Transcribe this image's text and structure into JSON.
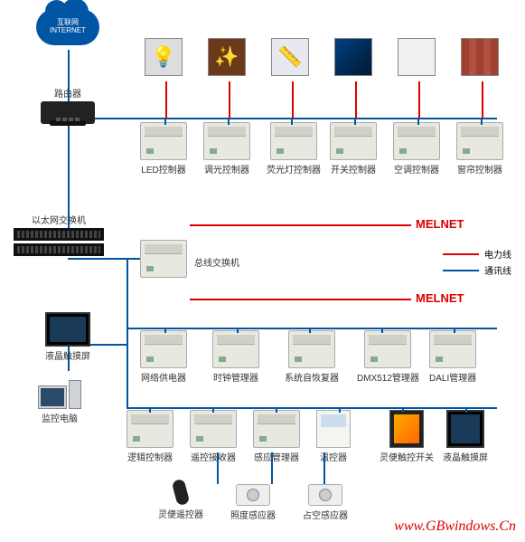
{
  "colors": {
    "bus": "#0055a5",
    "power": "#d00",
    "device": "#e8e8e0",
    "border": "#aaa"
  },
  "cloud": {
    "line1": "互联网",
    "line2": "INTERNET"
  },
  "router": {
    "label": "路由器"
  },
  "eth_switch": {
    "label": "以太网交换机"
  },
  "lcd": {
    "label": "液晶触摸屏"
  },
  "pc": {
    "label": "监控电脑"
  },
  "bus_switch": {
    "label": "总线交换机"
  },
  "melnet": "MELNET",
  "legend": {
    "power": "电力线",
    "comm": "通讯线"
  },
  "watermark": "www.GBwindows.Cn",
  "row1_icons": [
    {
      "glyph": "💡",
      "bg": "#ddd"
    },
    {
      "glyph": "✨",
      "bg": "#6a3a1a"
    },
    {
      "glyph": "📏",
      "bg": "#e8e8f0"
    },
    {
      "glyph": "",
      "cls": "tv-icon"
    },
    {
      "glyph": "",
      "cls": "ac-icon"
    },
    {
      "glyph": "",
      "cls": "curtain-icon"
    }
  ],
  "row1": [
    {
      "label": "LED控制器"
    },
    {
      "label": "调光控制器"
    },
    {
      "label": "荧光灯控制器"
    },
    {
      "label": "开关控制器"
    },
    {
      "label": "空调控制器"
    },
    {
      "label": "窗帘控制器"
    }
  ],
  "row2": [
    {
      "label": "网络供电器"
    },
    {
      "label": "时钟管理器"
    },
    {
      "label": "系统自恢复器"
    },
    {
      "label": "DMX512管理器"
    },
    {
      "label": "DALI管理器"
    }
  ],
  "row3": [
    {
      "label": "逻辑控制器",
      "type": "device"
    },
    {
      "label": "遥控接收器",
      "type": "device"
    },
    {
      "label": "感应管理器",
      "type": "device"
    },
    {
      "label": "温控器",
      "type": "thermostat"
    },
    {
      "label": "灵便触控开关",
      "type": "touch-sw"
    },
    {
      "label": "液晶触摸屏",
      "type": "monitor"
    }
  ],
  "row4": [
    {
      "label": "灵便遥控器"
    },
    {
      "label": "照度感应器"
    },
    {
      "label": "占空感应器"
    }
  ]
}
